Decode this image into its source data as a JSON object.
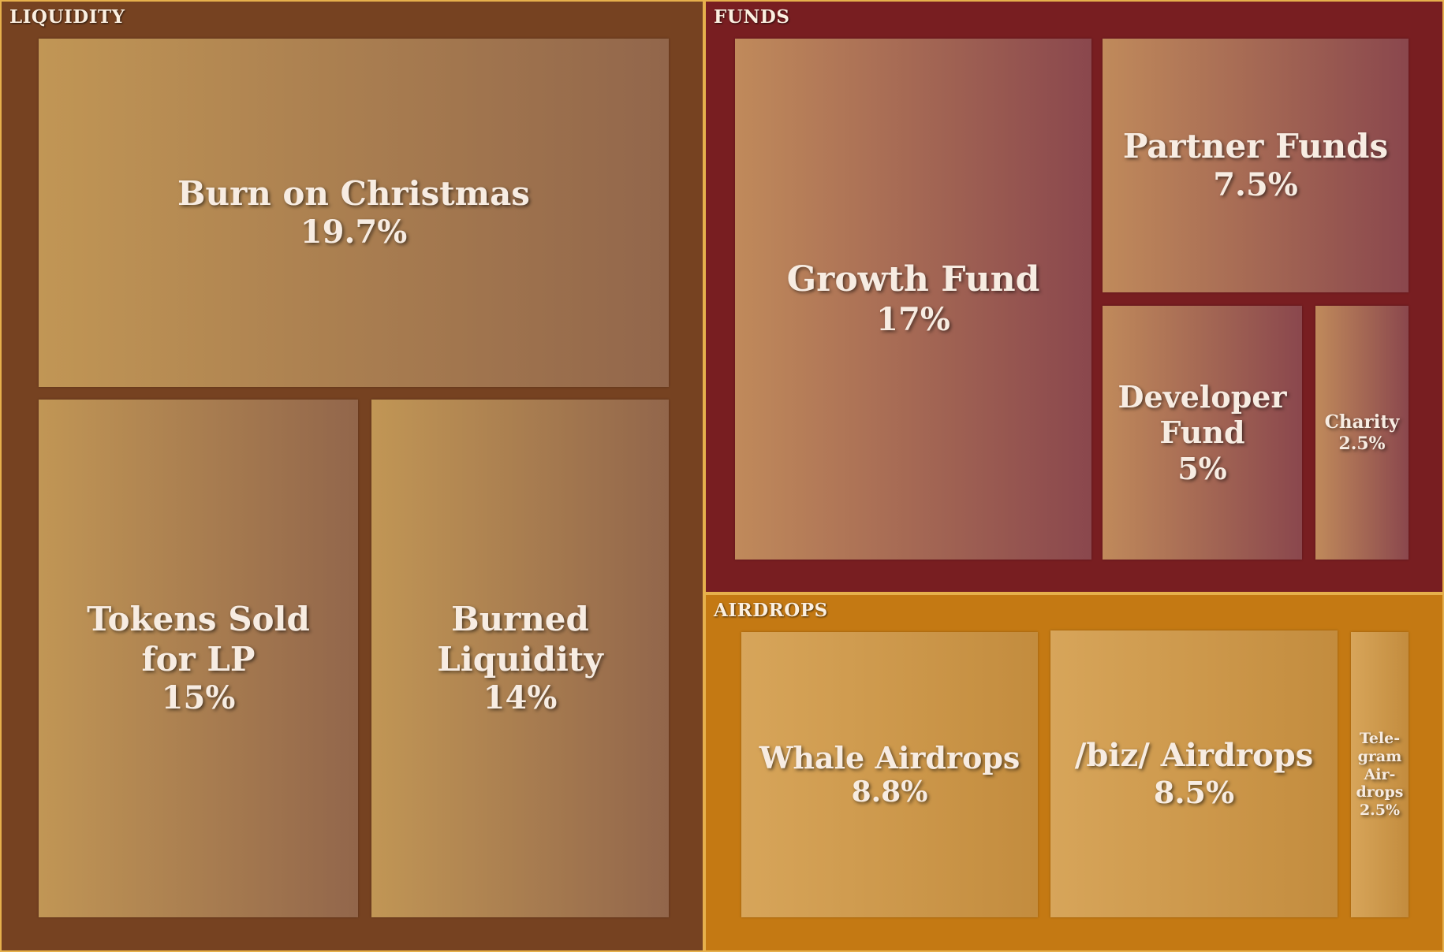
{
  "chart_data": {
    "type": "treemap",
    "groups": [
      {
        "name": "LIQUIDITY",
        "color": "#764221",
        "tile_gradient": [
          "#c19655",
          "#92664b"
        ],
        "items": [
          {
            "label": "Burn on Christmas",
            "value_label": "19.7%",
            "value": 19.7
          },
          {
            "label": "Tokens Sold for LP",
            "value_label": "15%",
            "value": 15
          },
          {
            "label": "Burned Liquidity",
            "value_label": "14%",
            "value": 14
          }
        ]
      },
      {
        "name": "FUNDS",
        "color": "#781e21",
        "tile_gradient": [
          "#c08a5b",
          "#8a474d"
        ],
        "items": [
          {
            "label": "Growth Fund",
            "value_label": "17%",
            "value": 17
          },
          {
            "label": "Partner Funds",
            "value_label": "7.5%",
            "value": 7.5
          },
          {
            "label": "Developer Fund",
            "value_label": "5%",
            "value": 5
          },
          {
            "label": "Charity",
            "value_label": "2.5%",
            "value": 2.5
          }
        ]
      },
      {
        "name": "AIRDROPS",
        "color": "#c47913",
        "tile_gradient": [
          "#d7a55a",
          "#c38c3e"
        ],
        "items": [
          {
            "label": "Whale Airdrops",
            "value_label": "8.8%",
            "value": 8.8
          },
          {
            "label": "/biz/ Airdrops",
            "value_label": "8.5%",
            "value": 8.5
          },
          {
            "label": "Tele-gram Air-drops",
            "value_label": "2.5%",
            "value": 2.5
          }
        ]
      }
    ]
  }
}
